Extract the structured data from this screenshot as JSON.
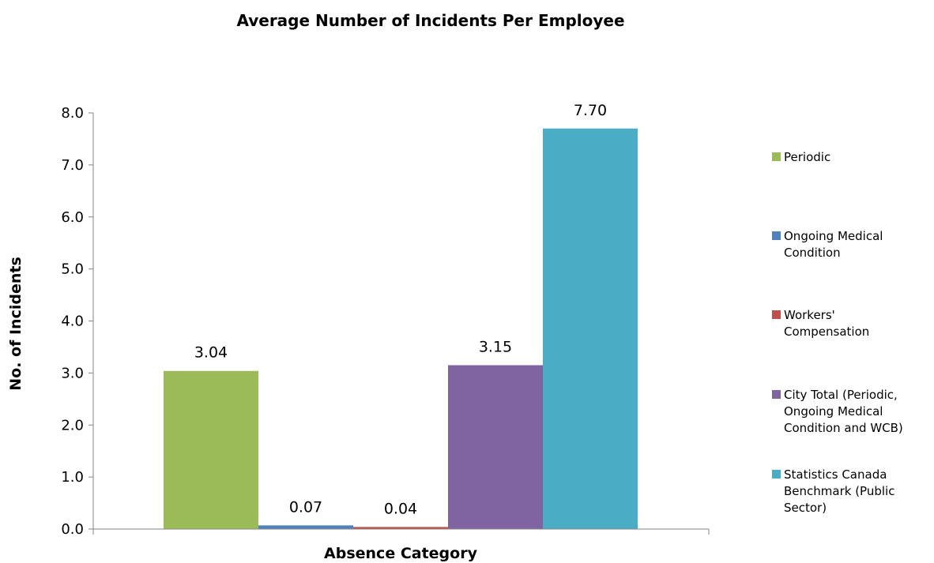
{
  "chart_data": {
    "type": "bar",
    "title": "Average Number of Incidents Per Employee",
    "xlabel": "Absence Category",
    "ylabel": "No. of Incidents",
    "ylim": [
      0,
      8
    ],
    "yticks": [
      "0.0",
      "1.0",
      "2.0",
      "3.0",
      "4.0",
      "5.0",
      "6.0",
      "7.0",
      "8.0"
    ],
    "grid": false,
    "legend_position": "right",
    "series": [
      {
        "name_lines": [
          "Periodic"
        ],
        "value": 3.04,
        "label": "3.04",
        "color": "#9BBB59"
      },
      {
        "name_lines": [
          "Ongoing Medical",
          "Condition"
        ],
        "value": 0.07,
        "label": "0.07",
        "color": "#4F81BD"
      },
      {
        "name_lines": [
          "Workers'",
          "Compensation"
        ],
        "value": 0.04,
        "label": "0.04",
        "color": "#C0504D"
      },
      {
        "name_lines": [
          "City Total (Periodic,",
          "Ongoing Medical",
          "Condition and WCB)"
        ],
        "value": 3.15,
        "label": "3.15",
        "color": "#8064A2"
      },
      {
        "name_lines": [
          "Statistics Canada",
          "Benchmark (Public",
          "Sector)"
        ],
        "value": 7.7,
        "label": "7.70",
        "color": "#4BACC6"
      }
    ]
  }
}
